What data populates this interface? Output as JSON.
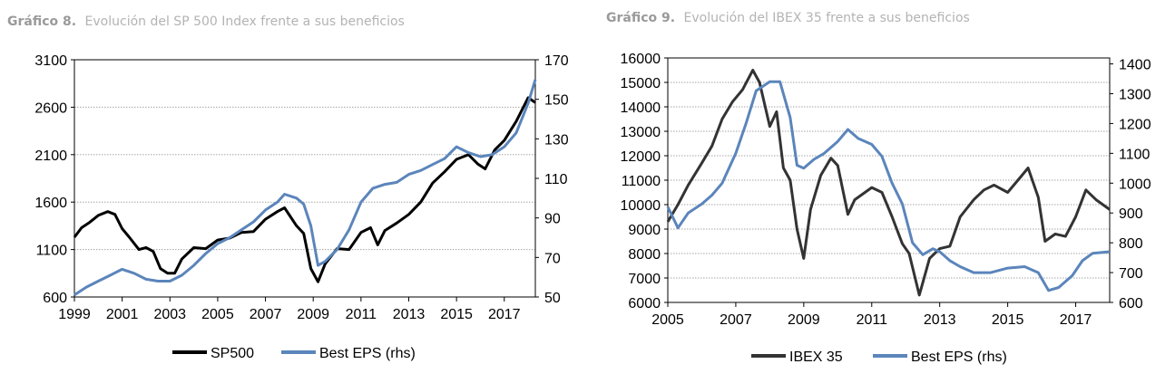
{
  "chart_data": [
    {
      "type": "line",
      "title_number": "Gráfico 8.",
      "title": "Evolución del SP 500 Index frente a sus beneficios",
      "x_ticks": [
        "1999",
        "2001",
        "2003",
        "2005",
        "2007",
        "2009",
        "2011",
        "2013",
        "2015",
        "2017"
      ],
      "xlim": [
        1999,
        2018.3
      ],
      "y_left_ticks": [
        "600",
        "1100",
        "1600",
        "2100",
        "2600",
        "3100"
      ],
      "ylim_left": [
        600,
        3100
      ],
      "y_right_ticks": [
        "50",
        "70",
        "90",
        "110",
        "130",
        "150",
        "170"
      ],
      "ylim_right": [
        50,
        170
      ],
      "series": [
        {
          "name": "SP500",
          "axis": "left",
          "color": "#000000",
          "x": [
            1999.0,
            1999.3,
            1999.6,
            2000.0,
            2000.4,
            2000.7,
            2001.0,
            2001.3,
            2001.7,
            2002.0,
            2002.3,
            2002.6,
            2002.9,
            2003.2,
            2003.5,
            2004.0,
            2004.5,
            2005.0,
            2005.5,
            2006.0,
            2006.5,
            2007.0,
            2007.5,
            2007.8,
            2008.3,
            2008.6,
            2008.9,
            2009.2,
            2009.5,
            2010.0,
            2010.5,
            2011.0,
            2011.4,
            2011.7,
            2012.0,
            2012.5,
            2013.0,
            2013.5,
            2014.0,
            2014.5,
            2015.0,
            2015.5,
            2015.9,
            2016.2,
            2016.6,
            2017.0,
            2017.5,
            2018.0,
            2018.3
          ],
          "values": [
            1230,
            1330,
            1380,
            1460,
            1500,
            1470,
            1320,
            1230,
            1100,
            1120,
            1080,
            900,
            850,
            850,
            1000,
            1120,
            1110,
            1200,
            1220,
            1280,
            1290,
            1420,
            1500,
            1540,
            1350,
            1270,
            900,
            760,
            950,
            1110,
            1100,
            1280,
            1330,
            1150,
            1300,
            1380,
            1470,
            1600,
            1800,
            1920,
            2050,
            2100,
            2000,
            1950,
            2150,
            2250,
            2450,
            2700,
            2650
          ]
        },
        {
          "name": "Best EPS (rhs)",
          "axis": "right",
          "color": "#5b85bb",
          "x": [
            1999.0,
            1999.5,
            2000.0,
            2000.5,
            2001.0,
            2001.5,
            2002.0,
            2002.5,
            2003.0,
            2003.5,
            2004.0,
            2004.5,
            2005.0,
            2005.5,
            2006.0,
            2006.5,
            2007.0,
            2007.5,
            2007.8,
            2008.3,
            2008.6,
            2008.9,
            2009.2,
            2009.5,
            2010.0,
            2010.5,
            2011.0,
            2011.5,
            2012.0,
            2012.5,
            2013.0,
            2013.5,
            2014.0,
            2014.5,
            2015.0,
            2015.5,
            2016.0,
            2016.5,
            2017.0,
            2017.5,
            2018.0,
            2018.3
          ],
          "values": [
            51,
            55,
            58,
            61,
            64,
            62,
            59,
            58,
            58,
            61,
            66,
            72,
            77,
            80,
            84,
            88,
            94,
            98,
            102,
            100,
            97,
            86,
            66,
            68,
            74,
            84,
            98,
            105,
            107,
            108,
            112,
            114,
            117,
            120,
            126,
            123,
            121,
            122,
            126,
            133,
            148,
            160
          ]
        }
      ],
      "legend": [
        "SP500",
        "Best EPS (rhs)"
      ]
    },
    {
      "type": "line",
      "title_number": "Gráfico 9.",
      "title": "Evolución del IBEX 35 frente a sus beneficios",
      "x_ticks": [
        "2005",
        "2007",
        "2009",
        "2011",
        "2013",
        "2015",
        "2017"
      ],
      "xlim": [
        2005,
        2018
      ],
      "y_left_ticks": [
        "6000",
        "7000",
        "8000",
        "9000",
        "10000",
        "11000",
        "12000",
        "13000",
        "14000",
        "15000",
        "16000"
      ],
      "ylim_left": [
        6000,
        16000
      ],
      "y_right_ticks": [
        "600",
        "700",
        "800",
        "900",
        "1000",
        "1100",
        "1200",
        "1300",
        "1400"
      ],
      "ylim_right": [
        600,
        1420
      ],
      "series": [
        {
          "name": "IBEX 35",
          "axis": "left",
          "color": "#333333",
          "x": [
            2005.0,
            2005.3,
            2005.6,
            2006.0,
            2006.3,
            2006.6,
            2006.9,
            2007.2,
            2007.5,
            2007.7,
            2008.0,
            2008.2,
            2008.4,
            2008.6,
            2008.8,
            2009.0,
            2009.2,
            2009.5,
            2009.8,
            2010.0,
            2010.3,
            2010.5,
            2010.8,
            2011.0,
            2011.3,
            2011.6,
            2011.9,
            2012.1,
            2012.4,
            2012.7,
            2013.0,
            2013.3,
            2013.6,
            2014.0,
            2014.3,
            2014.6,
            2015.0,
            2015.3,
            2015.6,
            2015.9,
            2016.1,
            2016.4,
            2016.7,
            2017.0,
            2017.3,
            2017.6,
            2018.0
          ],
          "values": [
            9300,
            10000,
            10800,
            11700,
            12400,
            13500,
            14200,
            14700,
            15500,
            15000,
            13200,
            13800,
            11500,
            11000,
            9000,
            7800,
            9800,
            11200,
            11900,
            11600,
            9600,
            10200,
            10500,
            10700,
            10500,
            9500,
            8400,
            8000,
            6300,
            7800,
            8200,
            8300,
            9500,
            10200,
            10600,
            10800,
            10500,
            11000,
            11500,
            10300,
            8500,
            8800,
            8700,
            9500,
            10600,
            10200,
            9800
          ]
        },
        {
          "name": "Best EPS (rhs)",
          "axis": "right",
          "color": "#5b85bb",
          "x": [
            2005.0,
            2005.3,
            2005.6,
            2006.0,
            2006.3,
            2006.6,
            2007.0,
            2007.3,
            2007.6,
            2008.0,
            2008.3,
            2008.6,
            2008.8,
            2009.0,
            2009.3,
            2009.6,
            2010.0,
            2010.3,
            2010.6,
            2011.0,
            2011.3,
            2011.6,
            2011.9,
            2012.2,
            2012.5,
            2012.8,
            2013.0,
            2013.3,
            2013.6,
            2014.0,
            2014.5,
            2015.0,
            2015.5,
            2015.9,
            2016.2,
            2016.5,
            2016.9,
            2017.2,
            2017.5,
            2018.0
          ],
          "values": [
            920,
            850,
            900,
            930,
            960,
            1000,
            1100,
            1200,
            1310,
            1340,
            1340,
            1220,
            1060,
            1050,
            1080,
            1100,
            1140,
            1180,
            1150,
            1130,
            1090,
            1000,
            930,
            800,
            760,
            780,
            770,
            740,
            720,
            700,
            700,
            715,
            720,
            700,
            640,
            650,
            690,
            740,
            765,
            770
          ]
        }
      ],
      "legend": [
        "IBEX 35",
        "Best EPS (rhs)"
      ]
    }
  ]
}
